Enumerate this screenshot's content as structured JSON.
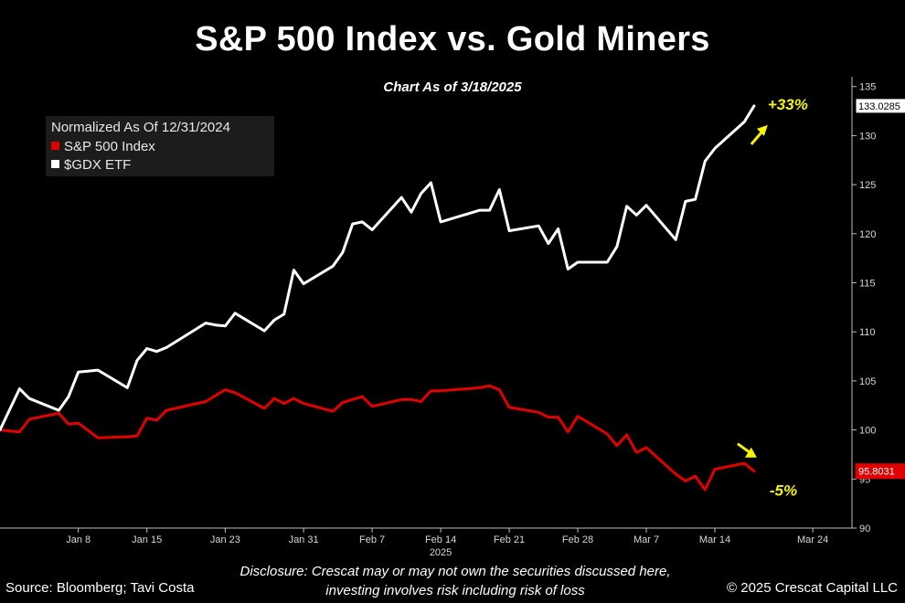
{
  "header": {
    "title": "S&P 500 Index vs. Gold Miners",
    "subtitle": "Chart As of 3/18/2025"
  },
  "legend": {
    "header": "Normalized As Of 12/31/2024",
    "items": [
      {
        "label": "S&P 500 Index",
        "color": "#e00000"
      },
      {
        "label": "$GDX ETF",
        "color": "#ffffff"
      }
    ]
  },
  "annotations": {
    "gdx_change": "+33%",
    "spx_change": "-5%",
    "arrow_color": "#f5f500"
  },
  "footer": {
    "source": "Source: Bloomberg; Tavi Costa",
    "disclosure_line1": "Disclosure: Crescat may or may not own the securities discussed here,",
    "disclosure_line2": "investing involves risk including risk of loss",
    "copyright": "© 2025 Crescat Capital LLC"
  },
  "chart_data": {
    "type": "line",
    "title": "S&P 500 Index vs. Gold Miners",
    "subtitle": "Chart As of 3/18/2025",
    "xlabel": "",
    "ylabel": "",
    "x_start": "2024-12-31",
    "x_end": "2025-03-28",
    "x_ticks": [
      {
        "label": "Jan 8",
        "date": "2025-01-08"
      },
      {
        "label": "Jan 15",
        "date": "2025-01-15"
      },
      {
        "label": "Jan 23",
        "date": "2025-01-23"
      },
      {
        "label": "Jan 31",
        "date": "2025-01-31"
      },
      {
        "label": "Feb 7",
        "date": "2025-02-07"
      },
      {
        "label": "Feb 14",
        "date": "2025-02-14"
      },
      {
        "label": "Feb 21",
        "date": "2025-02-21"
      },
      {
        "label": "Feb 28",
        "date": "2025-02-28"
      },
      {
        "label": "Mar 7",
        "date": "2025-03-07"
      },
      {
        "label": "Mar 14",
        "date": "2025-03-14"
      },
      {
        "label": "Mar 24",
        "date": "2025-03-24"
      }
    ],
    "year_label": "2025",
    "year_label_date": "2025-02-14",
    "ylim": [
      90,
      136
    ],
    "y_ticks": [
      90,
      95,
      100,
      105,
      110,
      115,
      120,
      125,
      130,
      135
    ],
    "grid": false,
    "legend_position": "top-left",
    "dates": [
      "2024-12-31",
      "2025-01-02",
      "2025-01-03",
      "2025-01-06",
      "2025-01-07",
      "2025-01-08",
      "2025-01-10",
      "2025-01-13",
      "2025-01-14",
      "2025-01-15",
      "2025-01-16",
      "2025-01-17",
      "2025-01-21",
      "2025-01-22",
      "2025-01-23",
      "2025-01-24",
      "2025-01-27",
      "2025-01-28",
      "2025-01-29",
      "2025-01-30",
      "2025-01-31",
      "2025-02-03",
      "2025-02-04",
      "2025-02-05",
      "2025-02-06",
      "2025-02-07",
      "2025-02-10",
      "2025-02-11",
      "2025-02-12",
      "2025-02-13",
      "2025-02-14",
      "2025-02-18",
      "2025-02-19",
      "2025-02-20",
      "2025-02-21",
      "2025-02-24",
      "2025-02-25",
      "2025-02-26",
      "2025-02-27",
      "2025-02-28",
      "2025-03-03",
      "2025-03-04",
      "2025-03-05",
      "2025-03-06",
      "2025-03-07",
      "2025-03-10",
      "2025-03-11",
      "2025-03-12",
      "2025-03-13",
      "2025-03-14",
      "2025-03-17",
      "2025-03-18"
    ],
    "series": [
      {
        "name": "S&P 500 Index",
        "color": "#e00000",
        "last_value_label": "95.8031",
        "values": [
          100.0,
          99.8,
          101.1,
          101.7,
          100.6,
          100.7,
          99.2,
          99.3,
          99.4,
          101.2,
          101.0,
          102.0,
          102.9,
          103.5,
          104.1,
          103.8,
          102.2,
          103.2,
          102.7,
          103.2,
          102.7,
          101.9,
          102.8,
          103.1,
          103.4,
          102.4,
          103.1,
          103.1,
          102.9,
          104.0,
          104.0,
          104.3,
          104.5,
          104.1,
          102.3,
          101.8,
          101.3,
          101.3,
          99.8,
          101.4,
          99.6,
          98.4,
          99.5,
          97.7,
          98.2,
          95.5,
          94.8,
          95.3,
          93.9,
          96.0,
          96.6,
          95.8
        ]
      },
      {
        "name": "$GDX ETF",
        "color": "#ffffff",
        "last_value_label": "133.0285",
        "values": [
          100.0,
          104.2,
          103.2,
          102.0,
          103.4,
          105.9,
          106.1,
          104.3,
          107.1,
          108.3,
          108.0,
          108.4,
          110.9,
          110.7,
          110.6,
          111.9,
          110.1,
          111.2,
          111.8,
          116.3,
          114.9,
          116.7,
          118.1,
          121.0,
          121.2,
          120.4,
          123.7,
          122.2,
          124.1,
          125.2,
          121.2,
          122.4,
          122.4,
          124.5,
          120.3,
          120.8,
          119.0,
          120.5,
          116.4,
          117.1,
          117.1,
          118.7,
          122.8,
          121.9,
          122.9,
          119.4,
          123.3,
          123.5,
          127.4,
          128.7,
          131.4,
          133.03
        ]
      }
    ]
  }
}
